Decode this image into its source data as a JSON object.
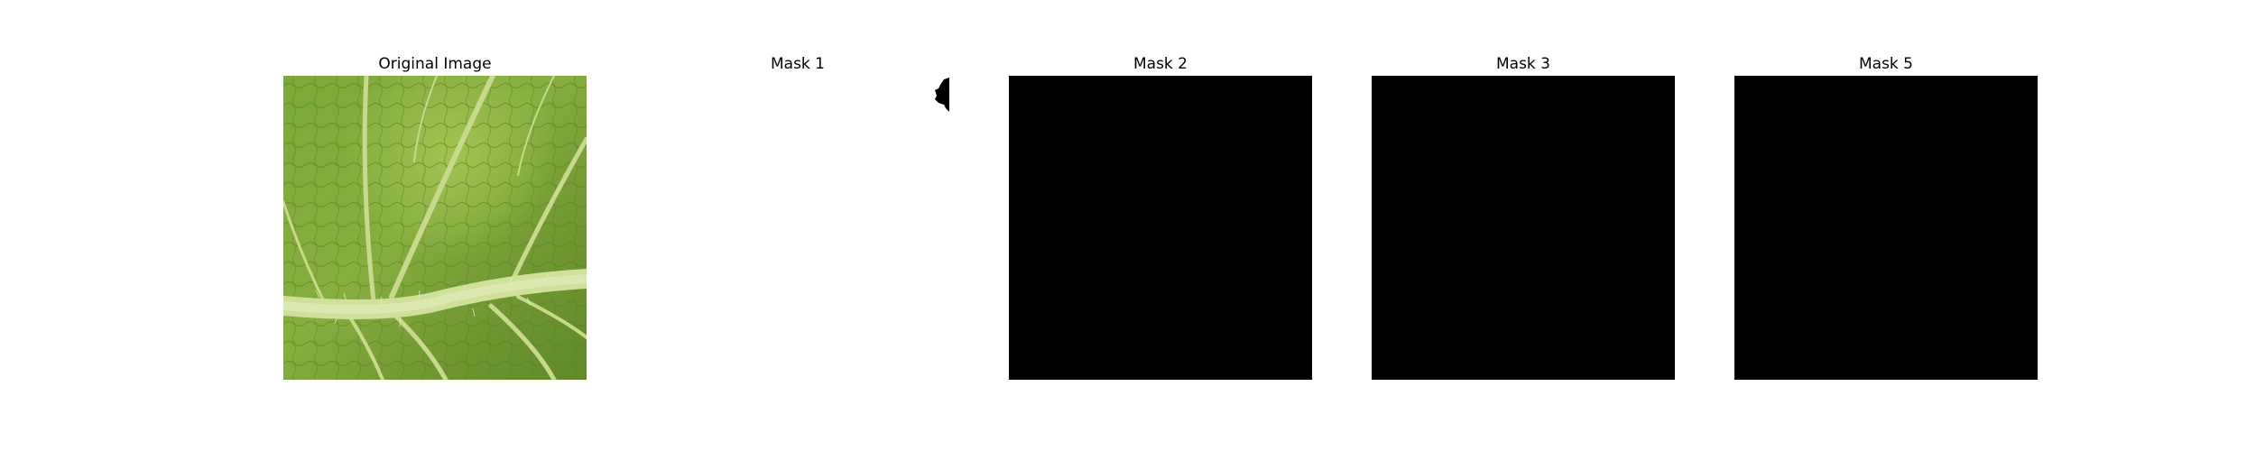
{
  "figure": {
    "panels": [
      {
        "id": "original",
        "title": "Original Image",
        "content": "leaf-photo",
        "fill": "#6f9a2e"
      },
      {
        "id": "mask1",
        "title": "Mask 1",
        "content": "mostly-white-mask-with-small-black-edge-blob",
        "fill": "#ffffff",
        "blob_fill": "#000000"
      },
      {
        "id": "mask2",
        "title": "Mask 2",
        "content": "solid-black",
        "fill": "#000000"
      },
      {
        "id": "mask3",
        "title": "Mask 3",
        "content": "solid-black",
        "fill": "#000000"
      },
      {
        "id": "mask5",
        "title": "Mask 5",
        "content": "solid-black",
        "fill": "#000000"
      }
    ]
  }
}
